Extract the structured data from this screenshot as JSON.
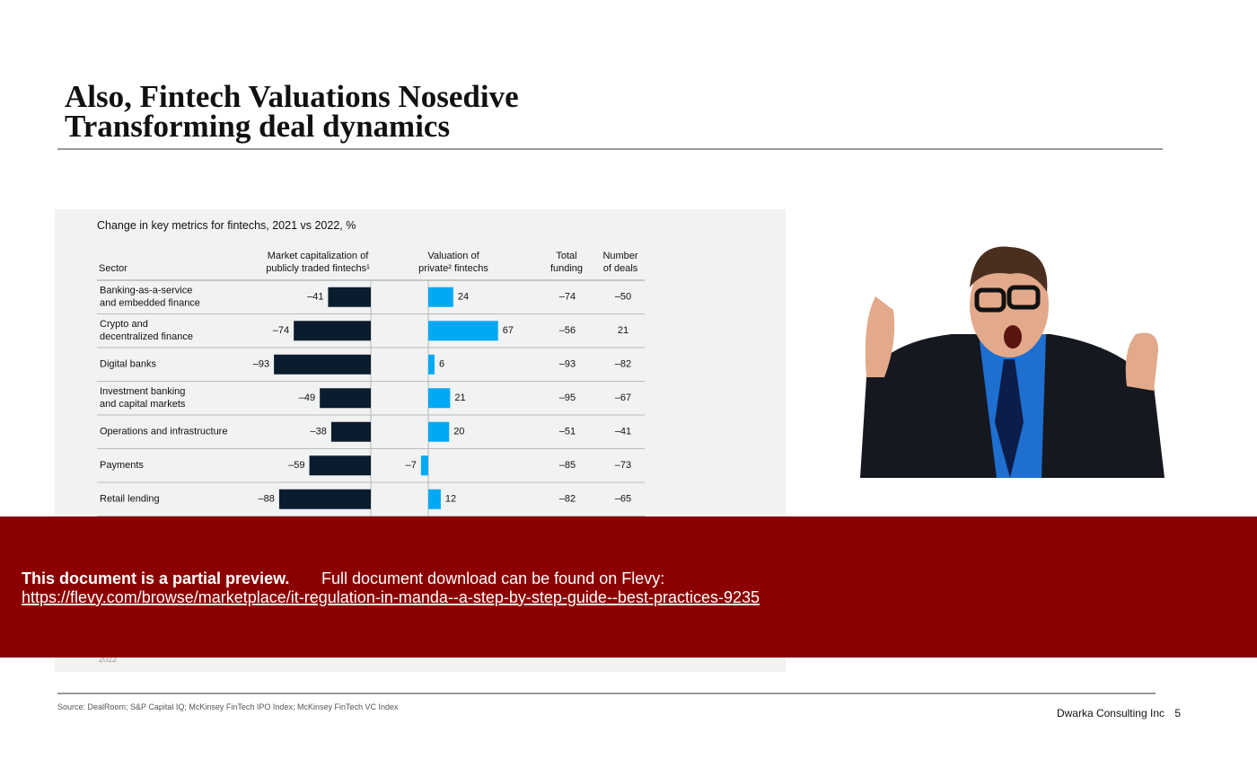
{
  "header": {
    "title_lines": [
      "Also, Fintech Valuations Nosedive",
      "Transforming deal dynamics"
    ]
  },
  "panel": {
    "caption": "Change in key metrics for fintechs, 2021 vs 2022, %",
    "columns": {
      "sector": [
        "Sector"
      ],
      "market_cap": [
        "Market capitalization of",
        "publicly traded fintechs¹"
      ],
      "valuation": [
        "Valuation of",
        "private² fintechs"
      ],
      "total_funding": [
        "Total",
        "funding"
      ],
      "deals": [
        "Number",
        "of deals"
      ]
    },
    "rows": [
      {
        "sector": [
          "Banking-as-a-service",
          "and embedded finance"
        ],
        "total_funding": "–74",
        "deals": "–50"
      },
      {
        "sector": [
          "Crypto and",
          "decentralized finance"
        ],
        "total_funding": "–56",
        "deals": "21"
      },
      {
        "sector": [
          "Digital banks"
        ],
        "total_funding": "–93",
        "deals": "–82"
      },
      {
        "sector": [
          "Investment banking",
          "and capital markets"
        ],
        "total_funding": "–95",
        "deals": "–67"
      },
      {
        "sector": [
          "Operations and infrastructure"
        ],
        "total_funding": "–51",
        "deals": "–41"
      },
      {
        "sector": [
          "Payments"
        ],
        "total_funding": "–85",
        "deals": "–73"
      },
      {
        "sector": [
          "Retail lending"
        ],
        "total_funding": "–82",
        "deals": "–65"
      }
    ],
    "market_cap": {
      "values": [
        -41,
        -74,
        -93,
        -49,
        -38,
        -59,
        -88
      ],
      "value_labels": [
        "–41",
        "–74",
        "–93",
        "–49",
        "–38",
        "–59",
        "–88"
      ]
    },
    "valuation": {
      "values": [
        24,
        67,
        6,
        21,
        20,
        -7,
        12
      ],
      "value_labels": [
        "24",
        "67",
        "6",
        "21",
        "20",
        "–7",
        "12"
      ]
    },
    "footnote_fragment": "2022"
  },
  "banner": {
    "bold": "This document is a partial preview.",
    "text": "Full document download can be found on Flevy:",
    "link": "https://flevy.com/browse/marketplace/it-regulation-in-manda--a-step-by-step-guide--best-practices-9235"
  },
  "footer": {
    "source": "Source: DealRoom; S&P Capital IQ; McKinsey FinTech IPO Index; McKinsey FinTech VC Index",
    "company": "Dwarka Consulting Inc",
    "page": "5"
  }
}
